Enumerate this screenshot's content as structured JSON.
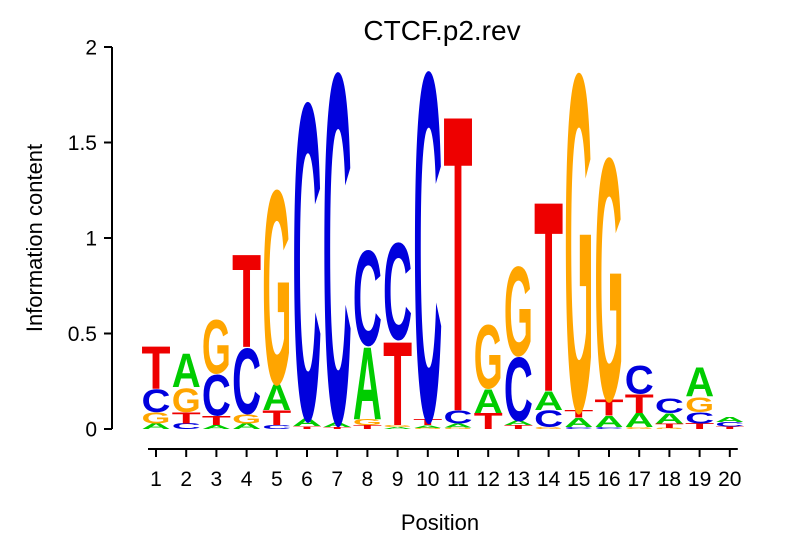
{
  "chart_data": {
    "type": "sequence_logo",
    "title": "CTCF.p2.rev",
    "xlabel": "Position",
    "ylabel": "Information content",
    "units": "bits",
    "ylim": [
      0,
      2
    ],
    "yticks": [
      0,
      0.5,
      1,
      1.5,
      2
    ],
    "ytick_labels": [
      "0",
      "0.5",
      "1",
      "1.5",
      "2"
    ],
    "xtick_labels": [
      "1",
      "2",
      "3",
      "4",
      "5",
      "6",
      "7",
      "8",
      "9",
      "10",
      "11",
      "12",
      "13",
      "14",
      "15",
      "16",
      "17",
      "18",
      "19",
      "20"
    ],
    "grid": false,
    "legend": "none",
    "letter_colors": {
      "A": "#00CC00",
      "C": "#0000DD",
      "G": "#FFA500",
      "T": "#EE0000"
    },
    "stacks": [
      {
        "position": 1,
        "letters": [
          {
            "base": "A",
            "bits": 0.03
          },
          {
            "base": "G",
            "bits": 0.06
          },
          {
            "base": "C",
            "bits": 0.12
          },
          {
            "base": "T",
            "bits": 0.23
          }
        ]
      },
      {
        "position": 2,
        "letters": [
          {
            "base": "C",
            "bits": 0.03
          },
          {
            "base": "T",
            "bits": 0.06
          },
          {
            "base": "G",
            "bits": 0.13
          },
          {
            "base": "A",
            "bits": 0.18
          }
        ]
      },
      {
        "position": 3,
        "letters": [
          {
            "base": "A",
            "bits": 0.02
          },
          {
            "base": "T",
            "bits": 0.05
          },
          {
            "base": "C",
            "bits": 0.22
          },
          {
            "base": "G",
            "bits": 0.29
          }
        ]
      },
      {
        "position": 4,
        "letters": [
          {
            "base": "A",
            "bits": 0.03
          },
          {
            "base": "G",
            "bits": 0.05
          },
          {
            "base": "C",
            "bits": 0.35
          },
          {
            "base": "T",
            "bits": 0.5
          }
        ]
      },
      {
        "position": 5,
        "letters": [
          {
            "base": "C",
            "bits": 0.02
          },
          {
            "base": "T",
            "bits": 0.08
          },
          {
            "base": "A",
            "bits": 0.14
          },
          {
            "base": "G",
            "bits": 1.04
          }
        ]
      },
      {
        "position": 6,
        "letters": [
          {
            "base": "T",
            "bits": 0.015
          },
          {
            "base": "A",
            "bits": 0.04
          },
          {
            "base": "C",
            "bits": 1.7
          }
        ]
      },
      {
        "position": 7,
        "letters": [
          {
            "base": "T",
            "bits": 0.01
          },
          {
            "base": "A",
            "bits": 0.025
          },
          {
            "base": "C",
            "bits": 1.88
          }
        ]
      },
      {
        "position": 8,
        "letters": [
          {
            "base": "T",
            "bits": 0.02
          },
          {
            "base": "G",
            "bits": 0.03
          },
          {
            "base": "A",
            "bits": 0.39
          },
          {
            "base": "C",
            "bits": 0.51
          }
        ]
      },
      {
        "position": 9,
        "letters": [
          {
            "base": "A",
            "bits": 0.01
          },
          {
            "base": "G",
            "bits": 0.01
          },
          {
            "base": "T",
            "bits": 0.45
          },
          {
            "base": "C",
            "bits": 0.52
          }
        ]
      },
      {
        "position": 10,
        "letters": [
          {
            "base": "G",
            "bits": 0.005
          },
          {
            "base": "A",
            "bits": 0.015
          },
          {
            "base": "T",
            "bits": 0.03
          },
          {
            "base": "C",
            "bits": 1.87
          }
        ]
      },
      {
        "position": 11,
        "letters": [
          {
            "base": "G",
            "bits": 0.008
          },
          {
            "base": "A",
            "bits": 0.02
          },
          {
            "base": "C",
            "bits": 0.07
          },
          {
            "base": "T",
            "bits": 1.59
          }
        ]
      },
      {
        "position": 12,
        "letters": [
          {
            "base": "T",
            "bits": 0.085
          },
          {
            "base": "A",
            "bits": 0.13
          },
          {
            "base": "G",
            "bits": 0.34
          }
        ]
      },
      {
        "position": 13,
        "letters": [
          {
            "base": "T",
            "bits": 0.02
          },
          {
            "base": "A",
            "bits": 0.025
          },
          {
            "base": "C",
            "bits": 0.34
          },
          {
            "base": "G",
            "bits": 0.48
          }
        ]
      },
      {
        "position": 14,
        "letters": [
          {
            "base": "G",
            "bits": 0.01
          },
          {
            "base": "C",
            "bits": 0.09
          },
          {
            "base": "A",
            "bits": 0.1
          },
          {
            "base": "T",
            "bits": 1.02
          }
        ]
      },
      {
        "position": 15,
        "letters": [
          {
            "base": "C",
            "bits": 0.01
          },
          {
            "base": "A",
            "bits": 0.05
          },
          {
            "base": "T",
            "bits": 0.04
          },
          {
            "base": "G",
            "bits": 1.81
          }
        ]
      },
      {
        "position": 16,
        "letters": [
          {
            "base": "C",
            "bits": 0.01
          },
          {
            "base": "A",
            "bits": 0.06
          },
          {
            "base": "T",
            "bits": 0.085
          },
          {
            "base": "G",
            "bits": 1.3
          }
        ]
      },
      {
        "position": 17,
        "letters": [
          {
            "base": "G",
            "bits": 0.01
          },
          {
            "base": "A",
            "bits": 0.075
          },
          {
            "base": "T",
            "bits": 0.1
          },
          {
            "base": "C",
            "bits": 0.15
          }
        ]
      },
      {
        "position": 18,
        "letters": [
          {
            "base": "G",
            "bits": 0.005
          },
          {
            "base": "T",
            "bits": 0.025
          },
          {
            "base": "A",
            "bits": 0.055
          },
          {
            "base": "C",
            "bits": 0.08
          }
        ]
      },
      {
        "position": 19,
        "letters": [
          {
            "base": "T",
            "bits": 0.03
          },
          {
            "base": "C",
            "bits": 0.06
          },
          {
            "base": "G",
            "bits": 0.08
          },
          {
            "base": "A",
            "bits": 0.155
          }
        ]
      },
      {
        "position": 20,
        "letters": [
          {
            "base": "T",
            "bits": 0.012
          },
          {
            "base": "C",
            "bits": 0.025
          },
          {
            "base": "A",
            "bits": 0.028
          }
        ]
      }
    ]
  }
}
